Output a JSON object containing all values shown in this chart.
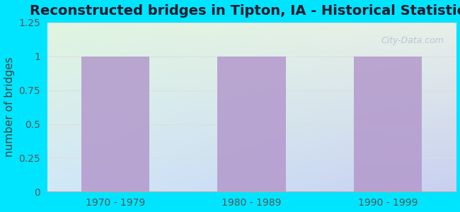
{
  "title": "Reconstructed bridges in Tipton, IA - Historical Statistics",
  "categories": [
    "1970 - 1979",
    "1980 - 1989",
    "1990 - 1999"
  ],
  "values": [
    1,
    1,
    1
  ],
  "bar_color": "#b399cc",
  "ylabel": "number of bridges",
  "ylim": [
    0,
    1.25
  ],
  "yticks": [
    0,
    0.25,
    0.5,
    0.75,
    1.0,
    1.25
  ],
  "background_outer": "#00e5ff",
  "background_inner_top_left": "#e0f5e0",
  "background_inner_bottom_right": "#c8d8f0",
  "title_fontsize": 14,
  "title_color": "#1a1a2e",
  "ylabel_fontsize": 11,
  "ylabel_color": "#444444",
  "tick_fontsize": 10,
  "tick_color": "#555555",
  "watermark_text": "City-Data.com",
  "grid_color": "#dddddd",
  "bar_width": 0.5
}
